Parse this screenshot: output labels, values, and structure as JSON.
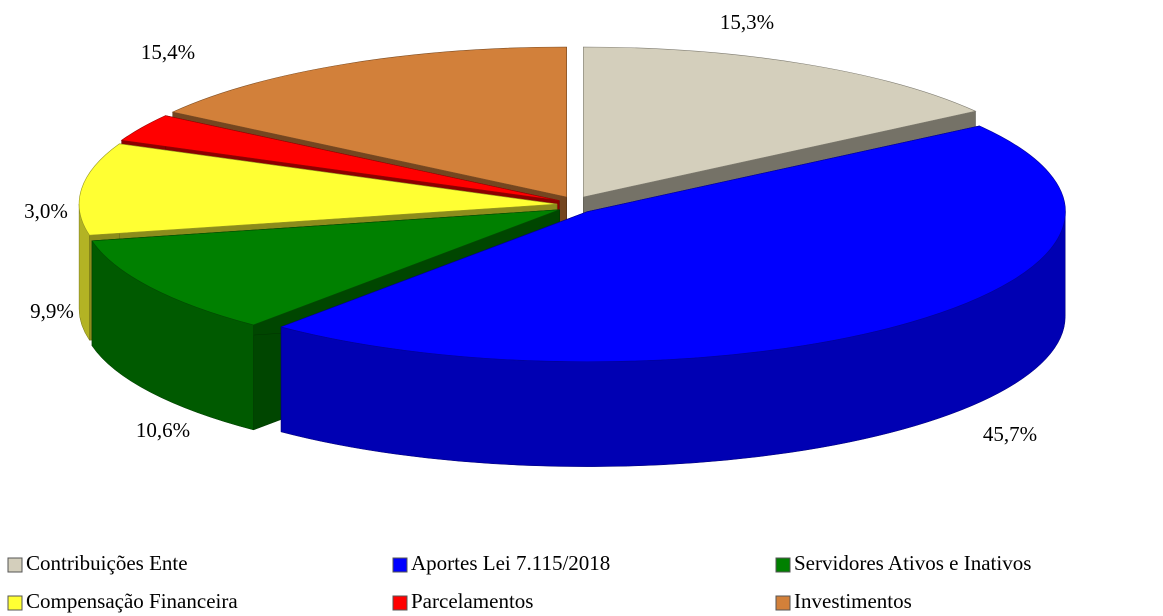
{
  "chart_data": {
    "type": "pie",
    "categories": [
      "Contribuições Ente",
      "Aportes Lei 7.115/2018",
      "Servidores Ativos e Inativos",
      "Compensação Financeira",
      "Parcelamentos",
      "Investimentos"
    ],
    "values": [
      15.3,
      45.7,
      10.6,
      9.9,
      3.0,
      15.4
    ],
    "value_labels": [
      "15,3%",
      "45,7%",
      "10,6%",
      "9,9%",
      "3,0%",
      "15,4%"
    ],
    "colors": [
      "#d4cfbc",
      "#0000ff",
      "#008000",
      "#ffff33",
      "#ff0000",
      "#d2803a"
    ],
    "legend": "bottom"
  }
}
